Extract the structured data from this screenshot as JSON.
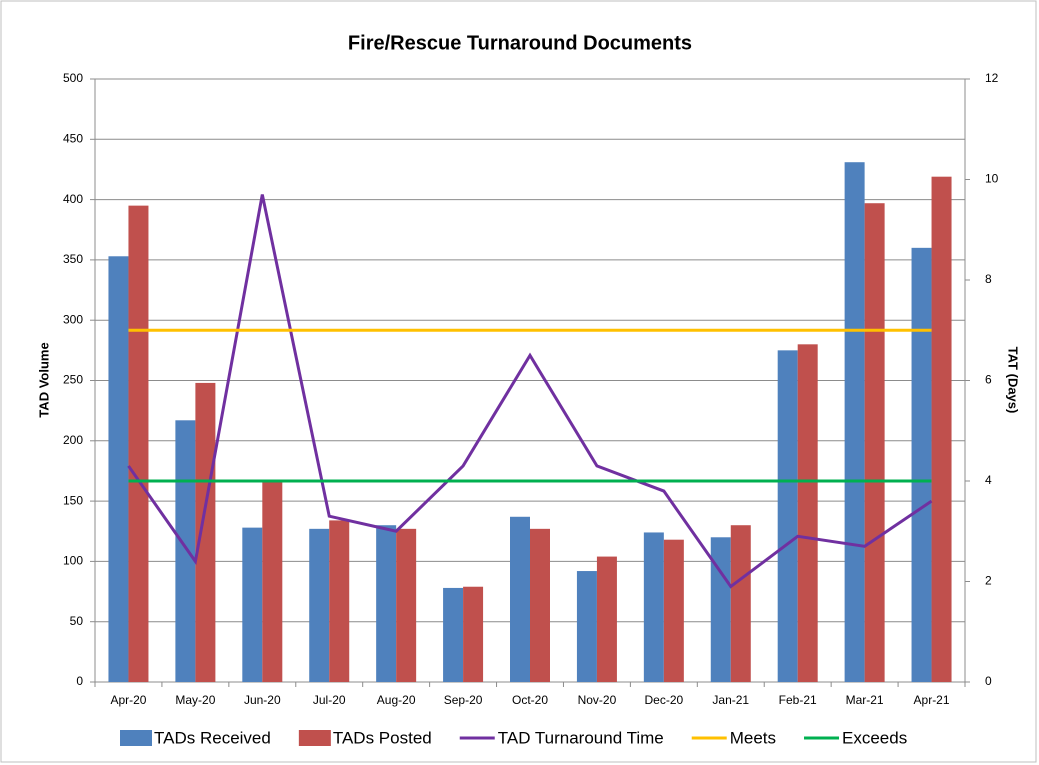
{
  "chart_data": {
    "type": "bar",
    "title": "Fire/Rescue Turnaround Documents",
    "y_label": "TAD Volume",
    "y2_label": "TAT (Days)",
    "categories": [
      "Apr-20",
      "May-20",
      "Jun-20",
      "Jul-20",
      "Aug-20",
      "Sep-20",
      "Oct-20",
      "Nov-20",
      "Dec-20",
      "Jan-21",
      "Feb-21",
      "Mar-21",
      "Apr-21"
    ],
    "series": [
      {
        "name": "TADs Received",
        "type": "bar",
        "color": "#4f81bd",
        "values": [
          353,
          217,
          128,
          127,
          130,
          78,
          137,
          92,
          124,
          120,
          275,
          431,
          360
        ]
      },
      {
        "name": "TADs Posted",
        "type": "bar",
        "color": "#c0504d",
        "values": [
          395,
          248,
          166,
          134,
          127,
          79,
          127,
          104,
          118,
          130,
          280,
          397,
          419
        ]
      },
      {
        "name": "TAD Turnaround Time",
        "type": "line",
        "axis": "y2",
        "color": "#7030a0",
        "values": [
          4.3,
          2.4,
          9.7,
          3.3,
          3.0,
          4.3,
          6.5,
          4.3,
          3.8,
          1.9,
          2.9,
          2.7,
          3.6
        ]
      },
      {
        "name": "Meets",
        "type": "line",
        "axis": "y2",
        "color": "#ffc000",
        "values": [
          7,
          7,
          7,
          7,
          7,
          7,
          7,
          7,
          7,
          7,
          7,
          7,
          7
        ]
      },
      {
        "name": "Exceeds",
        "type": "line",
        "axis": "y2",
        "color": "#00b050",
        "values": [
          4,
          4,
          4,
          4,
          4,
          4,
          4,
          4,
          4,
          4,
          4,
          4,
          4
        ]
      }
    ],
    "ylim": [
      0,
      500
    ],
    "yticks": [
      0,
      50,
      100,
      150,
      200,
      250,
      300,
      350,
      400,
      450,
      500
    ],
    "y2lim": [
      0,
      12
    ],
    "y2ticks": [
      0,
      2,
      4,
      6,
      8,
      10,
      12
    ],
    "grid": true,
    "legend": "bottom"
  }
}
